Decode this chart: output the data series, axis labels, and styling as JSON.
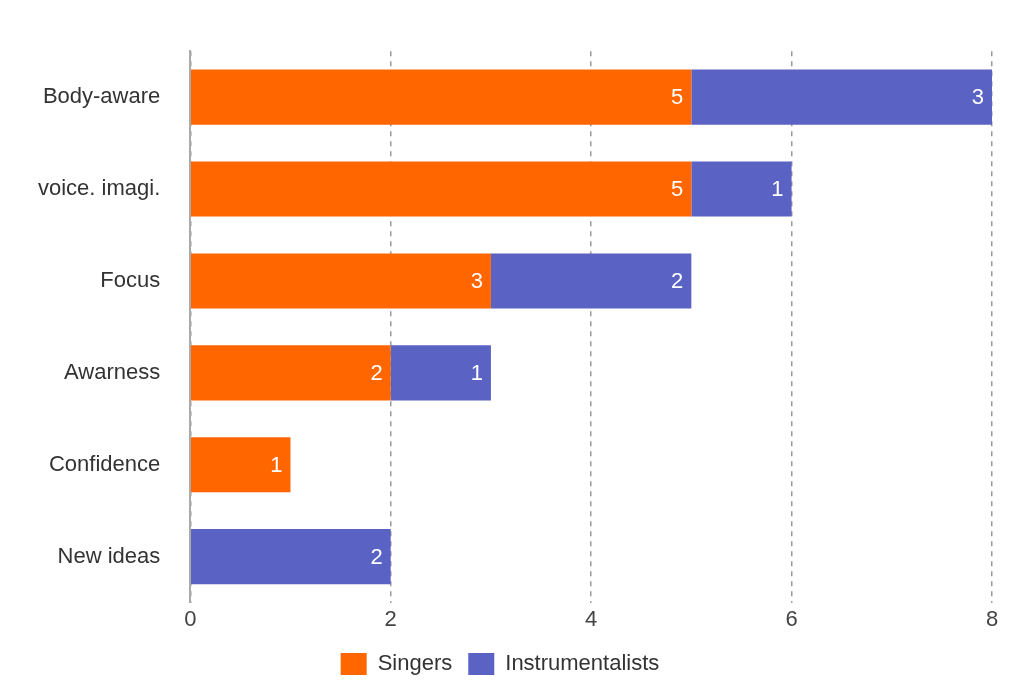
{
  "chart_data": {
    "type": "bar",
    "orientation": "horizontal",
    "stacked": true,
    "categories": [
      "Body-aware",
      "voice. imagi.",
      "Focus",
      "Awarness",
      "Confidence",
      "New ideas"
    ],
    "series": [
      {
        "name": "Singers",
        "color": "#ff6600",
        "values": [
          5,
          5,
          3,
          2,
          1,
          null
        ]
      },
      {
        "name": "Instrumentalists",
        "color": "#5a62c4",
        "values": [
          3,
          1,
          2,
          1,
          null,
          2
        ]
      }
    ],
    "xlim": [
      0,
      8
    ],
    "xticks": [
      0,
      2,
      4,
      6,
      8
    ],
    "grid": "x",
    "legend": "bottom",
    "data_labels": true
  }
}
